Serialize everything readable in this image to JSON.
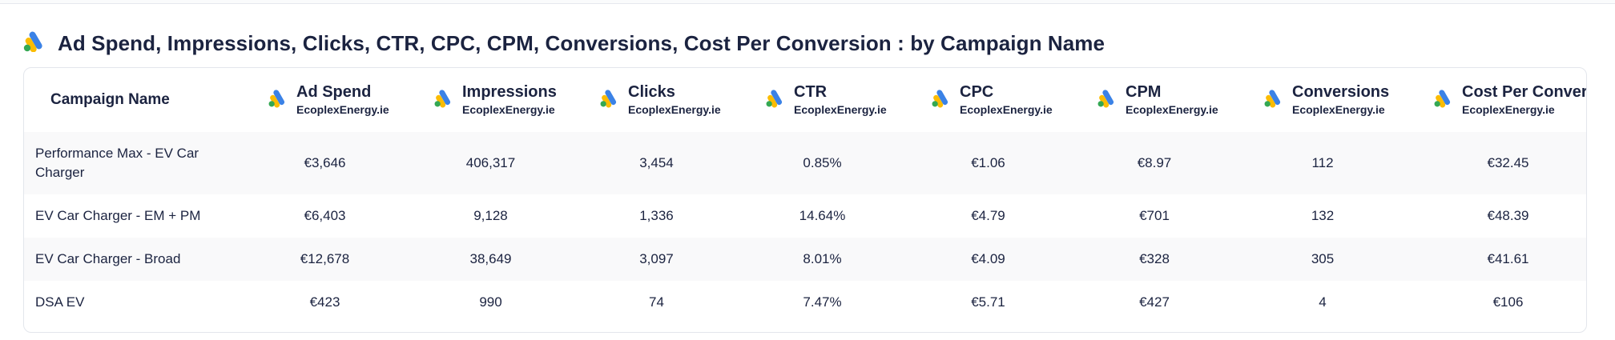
{
  "widget": {
    "title": "Ad Spend, Impressions, Clicks, CTR, CPC, CPM, Conversions, Cost Per Conversion : by Campaign Name",
    "icon": "google-ads-icon"
  },
  "table": {
    "first_column_header": "Campaign Name",
    "columns": [
      {
        "label": "Ad Spend",
        "source": "EcoplexEnergy.ie"
      },
      {
        "label": "Impressions",
        "source": "EcoplexEnergy.ie"
      },
      {
        "label": "Clicks",
        "source": "EcoplexEnergy.ie"
      },
      {
        "label": "CTR",
        "source": "EcoplexEnergy.ie"
      },
      {
        "label": "CPC",
        "source": "EcoplexEnergy.ie"
      },
      {
        "label": "CPM",
        "source": "EcoplexEnergy.ie"
      },
      {
        "label": "Conversions",
        "source": "EcoplexEnergy.ie"
      },
      {
        "label": "Cost Per Conversion",
        "source": "EcoplexEnergy.ie"
      }
    ],
    "rows": [
      {
        "name": "Performance Max - EV Car Charger",
        "values": [
          "€3,646",
          "406,317",
          "3,454",
          "0.85%",
          "€1.06",
          "€8.97",
          "112",
          "€32.45"
        ]
      },
      {
        "name": "EV Car Charger - EM + PM",
        "values": [
          "€6,403",
          "9,128",
          "1,336",
          "14.64%",
          "€4.79",
          "€701",
          "132",
          "€48.39"
        ]
      },
      {
        "name": "EV Car Charger - Broad",
        "values": [
          "€12,678",
          "38,649",
          "3,097",
          "8.01%",
          "€4.09",
          "€328",
          "305",
          "€41.61"
        ]
      },
      {
        "name": "DSA EV",
        "values": [
          "€423",
          "990",
          "74",
          "7.47%",
          "€5.71",
          "€427",
          "4",
          "€106"
        ]
      }
    ]
  },
  "colors": {
    "ads_blue": "#3b82e6",
    "ads_yellow": "#fbbc04",
    "ads_green": "#34a853",
    "text": "#1b2340",
    "stripe": "#f9f9fa",
    "border": "#e3e6ec"
  }
}
